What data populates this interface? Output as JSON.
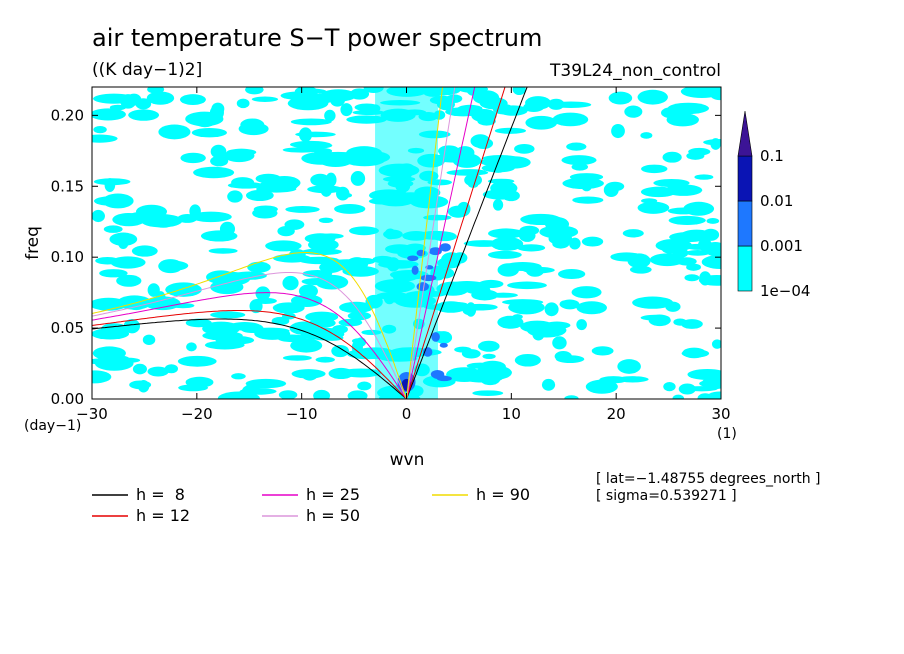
{
  "chart_data": {
    "type": "heatmap",
    "title": "air temperature S−T power spectrum",
    "units": "((K day−1)2]",
    "run_label": "T39L24_non_control",
    "xlabel": "wvn",
    "ylabel": "freq",
    "x_unit": "(1)",
    "y_unit": "(day−1)",
    "xlim": [
      -30,
      30
    ],
    "ylim": [
      0,
      0.22
    ],
    "x_ticks": [
      -30,
      -20,
      -10,
      0,
      10,
      20,
      30
    ],
    "x_tick_labels": [
      "−30",
      "−20",
      "−10",
      "0",
      "10",
      "20",
      "30"
    ],
    "y_ticks": [
      0,
      0.05,
      0.1,
      0.15,
      0.2
    ],
    "y_tick_labels": [
      "0.00",
      "0.05",
      "0.10",
      "0.15",
      "0.20"
    ],
    "colorbar": {
      "levels": [
        0.0001,
        0.001,
        0.01,
        0.1
      ],
      "labels": [
        "1e−04",
        "0.001",
        "0.01",
        "0.1"
      ],
      "colors": [
        "#00ffff",
        "#1e78ff",
        "#0a14b4",
        "#3c1496"
      ],
      "extend": "max"
    },
    "field_color": "#00ffff",
    "dispersion_curves": [
      {
        "label": "h =  8",
        "h": 8,
        "color": "#000000"
      },
      {
        "label": "h = 12",
        "h": 12,
        "color": "#e60000"
      },
      {
        "label": "h = 25",
        "h": 25,
        "color": "#e600c8"
      },
      {
        "label": "h = 50",
        "h": 50,
        "color": "#dc96dc"
      },
      {
        "label": "h = 90",
        "h": 90,
        "color": "#f0dc00"
      }
    ],
    "annotations": [
      "[ lat=−1.48755 degrees_north ]",
      "[ sigma=0.539271 ]"
    ]
  }
}
